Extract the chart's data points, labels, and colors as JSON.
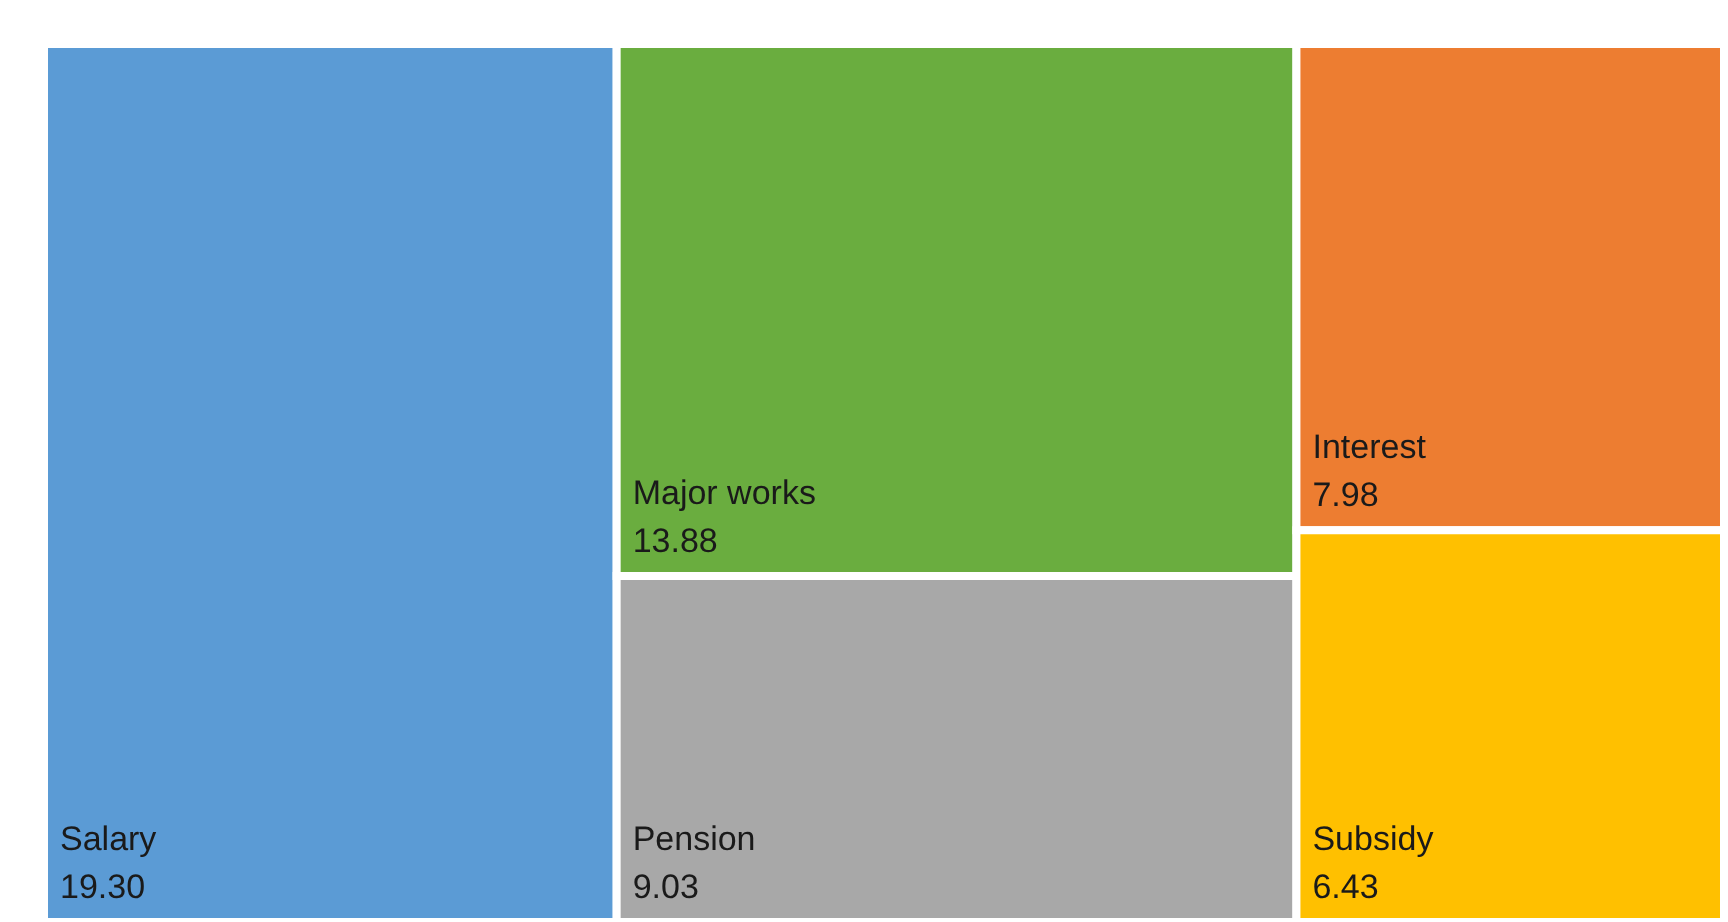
{
  "chart_data": {
    "type": "other",
    "categories": [
      "Salary",
      "Major works",
      "Pension",
      "Interest",
      "Subsidy"
    ],
    "values": [
      19.3,
      13.88,
      9.03,
      7.98,
      6.43
    ],
    "value_labels": [
      "19.30",
      "13.88",
      "9.03",
      "7.98",
      "6.43"
    ],
    "colors": [
      "#5b9bd5",
      "#6aad3f",
      "#a8a8a8",
      "#ed7d31",
      "#ffc000"
    ]
  }
}
